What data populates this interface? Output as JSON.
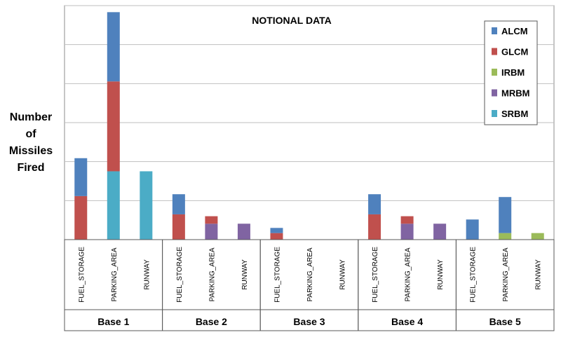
{
  "chart_data": {
    "type": "bar",
    "stacked": true,
    "title": "NOTIONAL DATA",
    "ylabel_lines": [
      "Number",
      "of",
      "Missiles",
      "Fired"
    ],
    "ylim": [
      0,
      50
    ],
    "y_ticks_labeled": false,
    "grid": true,
    "legend_position": "top-right",
    "groups": [
      {
        "name": "Base 1",
        "categories": [
          "FUEL_STORAGE",
          "PARKING_AREA",
          "RUNWAY"
        ]
      },
      {
        "name": "Base 2",
        "categories": [
          "FUEL_STORAGE",
          "PARKING_AREA",
          "RUNWAY"
        ]
      },
      {
        "name": "Base 3",
        "categories": [
          "FUEL_STORAGE",
          "PARKING_AREA",
          "RUNWAY"
        ]
      },
      {
        "name": "Base 4",
        "categories": [
          "FUEL_STORAGE",
          "PARKING_AREA",
          "RUNWAY"
        ]
      },
      {
        "name": "Base 5",
        "categories": [
          "FUEL_STORAGE",
          "PARKING_AREA",
          "RUNWAY"
        ]
      }
    ],
    "series": [
      {
        "name": "SRBM",
        "color": "#4BACC6",
        "values": [
          0,
          14.6,
          14.6,
          0,
          0,
          0,
          0,
          0,
          0,
          0,
          0,
          0,
          0,
          0,
          0
        ]
      },
      {
        "name": "MRBM",
        "color": "#8064A2",
        "values": [
          0,
          0,
          0,
          0,
          3.4,
          3.4,
          0,
          0,
          0,
          0,
          3.4,
          3.4,
          0,
          0,
          0
        ]
      },
      {
        "name": "IRBM",
        "color": "#9BBB59",
        "values": [
          0,
          0,
          0,
          0,
          0,
          0,
          0,
          0,
          0,
          0,
          0,
          0,
          0,
          1.4,
          1.4
        ]
      },
      {
        "name": "GLCM",
        "color": "#C0504D",
        "values": [
          9.3,
          19.2,
          0,
          5.4,
          1.6,
          0,
          1.4,
          0,
          0,
          5.4,
          1.6,
          0,
          0,
          0,
          0
        ]
      },
      {
        "name": "ALCM",
        "color": "#4F81BD",
        "values": [
          8.1,
          14.8,
          0,
          4.3,
          0,
          0,
          1.1,
          0,
          0,
          4.3,
          0,
          0,
          4.3,
          7.7,
          0
        ]
      }
    ],
    "legend_order": [
      "ALCM",
      "GLCM",
      "IRBM",
      "MRBM",
      "SRBM"
    ]
  }
}
